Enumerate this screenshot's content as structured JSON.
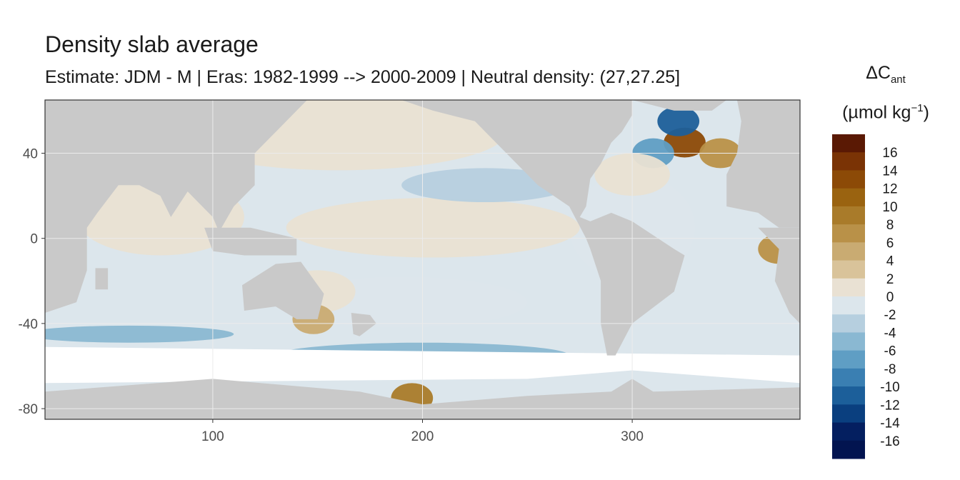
{
  "chart_data": {
    "type": "heatmap",
    "title": "Density slab average",
    "subtitle": "Estimate: JDM - M | Eras: 1982-1999 --> 2000-2009 | Neutral density: (27,27.25]",
    "xlabel": "",
    "ylabel": "",
    "xlim": [
      20,
      380
    ],
    "ylim": [
      -85,
      65
    ],
    "x_ticks": [
      "100",
      "200",
      "300"
    ],
    "x_tick_values": [
      100,
      200,
      300
    ],
    "y_ticks": [
      "40",
      "0",
      "-40",
      "-80"
    ],
    "y_tick_values": [
      40,
      0,
      -40,
      -80
    ],
    "grid": true,
    "legend": {
      "title_symbol": "ΔC",
      "title_sub": "ant",
      "title_unit": "(µmol kg",
      "title_unit_sup": "−1",
      "title_unit_end": ")",
      "placement": "right",
      "labels": [
        "16",
        "14",
        "12",
        "10",
        "8",
        "6",
        "4",
        "2",
        "0",
        "-2",
        "-4",
        "-6",
        "-8",
        "-10",
        "-12",
        "-14",
        "-16"
      ],
      "colors": [
        "#5a1904",
        "#7a3305",
        "#8c4a07",
        "#9a6310",
        "#a97b2a",
        "#b99148",
        "#c9ab72",
        "#d9c39a",
        "#e9e1d3",
        "#dce6ec",
        "#b6cfdf",
        "#8ab8d2",
        "#5f9ec4",
        "#3a7fb2",
        "#1c5f9a",
        "#0a3f7f",
        "#041f60",
        "#021450"
      ]
    },
    "land_color": "#c9c9c9",
    "no_data_color": "#ffffff",
    "regions": [
      {
        "name": "",
        "x": 300,
        "y": 5,
        "value": -1
      },
      {
        "name": "",
        "x": 160,
        "y": 50,
        "value": 0.5
      },
      {
        "name": "",
        "x": 205,
        "y": 5,
        "value": 0.8
      },
      {
        "name": "",
        "x": 190,
        "y": -30,
        "value": -1
      },
      {
        "name": "",
        "x": 150,
        "y": -25,
        "value": 2
      },
      {
        "name": "",
        "x": 200,
        "y": -55,
        "value": -4
      },
      {
        "name": "",
        "x": 60,
        "y": -45,
        "value": -4
      },
      {
        "name": "",
        "x": 75,
        "y": 10,
        "value": 1
      },
      {
        "name": "",
        "x": 370,
        "y": -5,
        "value": 8
      },
      {
        "name": "",
        "x": 325,
        "y": 45,
        "value": 14
      },
      {
        "name": "",
        "x": 322,
        "y": 55,
        "value": -10
      },
      {
        "name": "",
        "x": 342,
        "y": 40,
        "value": 8
      },
      {
        "name": "",
        "x": 310,
        "y": 40,
        "value": -6
      },
      {
        "name": "",
        "x": 300,
        "y": 30,
        "value": 1
      },
      {
        "name": "",
        "x": 195,
        "y": -75,
        "value": 10
      },
      {
        "name": "",
        "x": 148,
        "y": -38,
        "value": 6
      },
      {
        "name": "",
        "x": 230,
        "y": 25,
        "value": -2
      }
    ]
  }
}
